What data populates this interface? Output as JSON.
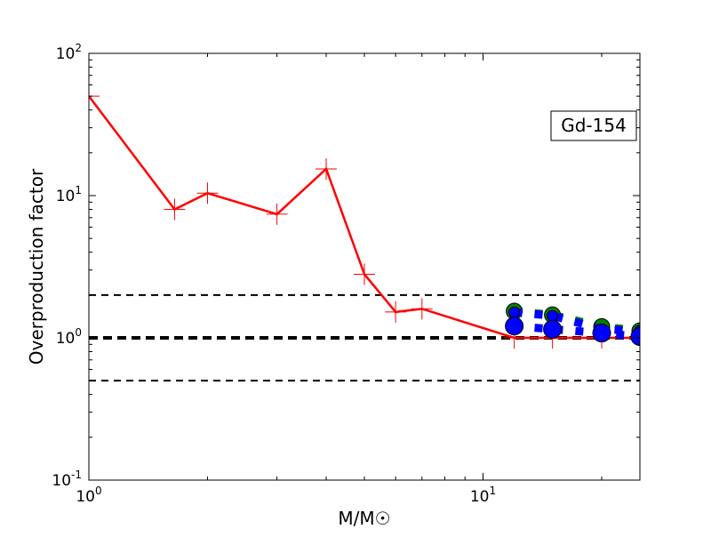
{
  "chart_data": {
    "type": "line",
    "title": "",
    "xlabel": "M/M☉",
    "ylabel": "Overproduction factor",
    "xscale": "log",
    "yscale": "log",
    "xlim": [
      1,
      25
    ],
    "ylim": [
      0.1,
      100
    ],
    "x_ticks": [
      {
        "value": 1,
        "base": "10",
        "exp": "0"
      },
      {
        "value": 10,
        "base": "10",
        "exp": "1"
      }
    ],
    "y_ticks": [
      {
        "value": 100,
        "base": "10",
        "exp": "2"
      },
      {
        "value": 10,
        "base": "10",
        "exp": "1"
      },
      {
        "value": 1,
        "base": "10",
        "exp": "0"
      },
      {
        "value": 0.1,
        "base": "10",
        "exp": "-1"
      }
    ],
    "annotation": "Gd-154",
    "reference_lines": [
      {
        "y": 2,
        "style": "dashed",
        "color": "#000000"
      },
      {
        "y": 1,
        "style": "dashed-thick",
        "color": "#000000"
      },
      {
        "y": 0.5,
        "style": "dashed",
        "color": "#000000"
      }
    ],
    "series": [
      {
        "color": "#ff0000",
        "style": "solid",
        "marker": "plus",
        "x": [
          1,
          1.65,
          2,
          3,
          4,
          5,
          6,
          7,
          12,
          15,
          20,
          25
        ],
        "y": [
          50,
          8.0,
          10.4,
          7.4,
          15.4,
          2.8,
          1.52,
          1.6,
          1.0,
          1.0,
          1.0,
          1.0
        ]
      },
      {
        "color": "#008000",
        "style": "dotted-thick",
        "marker": "circle",
        "x": [
          12,
          15,
          20,
          25
        ],
        "y": [
          1.54,
          1.45,
          1.2,
          1.12
        ]
      },
      {
        "color": "#0000ff",
        "style": "dotted-thick",
        "marker": "small-circle",
        "x": [
          12,
          15,
          20,
          25
        ],
        "y": [
          1.51,
          1.43,
          1.15,
          1.12
        ]
      },
      {
        "color": "#0000ff",
        "style": "dotted-thick",
        "marker": "large-circle",
        "x": [
          12,
          15,
          20,
          25
        ],
        "y": [
          1.21,
          1.15,
          1.08,
          1.02
        ]
      }
    ],
    "grid": false,
    "legend": "none"
  }
}
